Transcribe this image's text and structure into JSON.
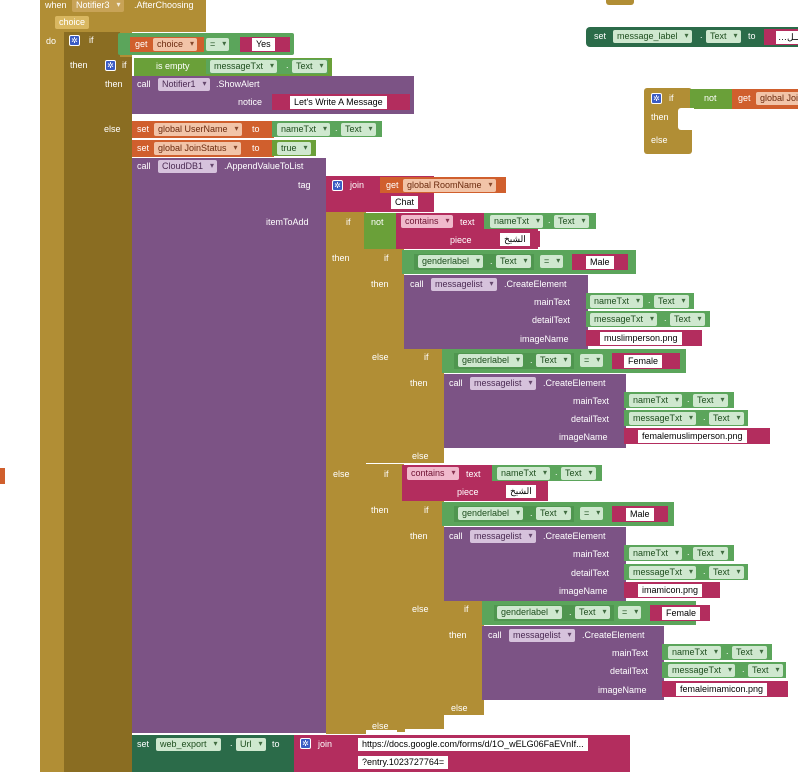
{
  "event": {
    "when": "when",
    "component": "Notifier3",
    "event_name": ".AfterChoosing",
    "param": "choice",
    "do": "do"
  },
  "kw": {
    "if": "if",
    "then": "then",
    "else": "else",
    "do": "do",
    "call": "call",
    "set": "set",
    "to": "to",
    "get": "get",
    "join": "join",
    "not": "not",
    "is_empty": "is empty",
    "contains": "contains",
    "text": "text",
    "piece": "piece",
    "eq": "=",
    "dot": "."
  },
  "top_if": {
    "var": "choice",
    "value": "Yes"
  },
  "empty_check": {
    "component": "messageTxt",
    "prop": "Text"
  },
  "alert": {
    "component": "Notifier1",
    "method": ".ShowAlert",
    "param": "notice",
    "message": "Let's Write A Message"
  },
  "set_username": {
    "var": "global UserName",
    "component": "nameTxt",
    "prop": "Text"
  },
  "set_joinstatus": {
    "var": "global JoinStatus",
    "value": "true"
  },
  "append": {
    "component": "CloudDB1",
    "method": ".AppendValueToList",
    "tag_label": "tag",
    "room_var": "global RoomName",
    "chat": "Chat",
    "item_label": "itemToAdd"
  },
  "contains_piece": "الشيخ",
  "gender_label": {
    "component": "genderlabel",
    "prop": "Text"
  },
  "male": "Male",
  "female": "Female",
  "create": {
    "component": "messagelist",
    "method": ".CreateElement",
    "main_label": "mainText",
    "detail_label": "detailText",
    "image_label": "imageName",
    "name_comp": "nameTxt",
    "msg_comp": "messageTxt",
    "prop": "Text"
  },
  "images": {
    "shaykh_male": "muslimperson.png",
    "shaykh_female": "femalemuslimperson.png",
    "imam_male": "imamicon.png",
    "imam_female": "femaleimamicon.png"
  },
  "web_export": {
    "component": "web_export",
    "prop": "Url",
    "url": "https://docs.google.com/forms/d/1O_wELG06FaEVnIf...",
    "entry": "?entry.1023727764="
  },
  "right": {
    "set_component": "message_label",
    "set_prop": "Text",
    "set_value": "…ـــل",
    "if_get": "global Joi"
  },
  "colors": {
    "control": "#b18e35",
    "procedure": "#7c5385",
    "component_getter": "#5ba55b",
    "variable": "#d05f2d",
    "text": "#b32d5e",
    "logic": "#6aa039"
  }
}
